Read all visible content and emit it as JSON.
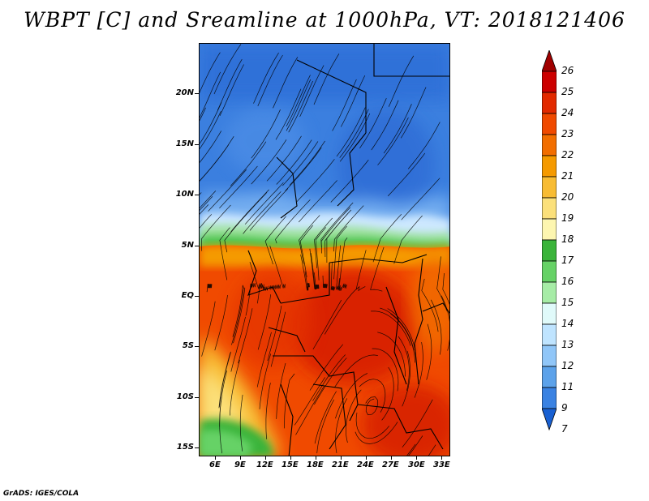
{
  "title": "WBPT [C] and Sreamline at 1000hPa, VT: 2018121406",
  "credit": "GrADS: IGES/COLA",
  "map": {
    "lat_labels": [
      "20N",
      "15N",
      "10N",
      "5N",
      "EQ",
      "5S",
      "10S",
      "15S"
    ],
    "lon_labels": [
      "6E",
      "9E",
      "12E",
      "15E",
      "18E",
      "21E",
      "24E",
      "27E",
      "30E",
      "33E"
    ],
    "regions": [
      "north-blue-zone",
      "transition-band",
      "equatorial-orange-zone",
      "southwest-yellow-zone",
      "southwest-green-zone"
    ]
  },
  "colorbar": {
    "labels": [
      "26",
      "25",
      "24",
      "23",
      "22",
      "21",
      "20",
      "19",
      "18",
      "17",
      "16",
      "15",
      "14",
      "13",
      "12",
      "11",
      "9",
      "7"
    ],
    "colors": [
      "#a00000",
      "#cc0000",
      "#e22a00",
      "#f04a00",
      "#f26e00",
      "#f59a00",
      "#f8bc33",
      "#fbe07a",
      "#fdf6b0",
      "#3ab43a",
      "#66d266",
      "#a6eca6",
      "#e0fafa",
      "#bfe4ff",
      "#90c6f8",
      "#5ca2ea",
      "#3a82e2",
      "#1860d2"
    ]
  }
}
